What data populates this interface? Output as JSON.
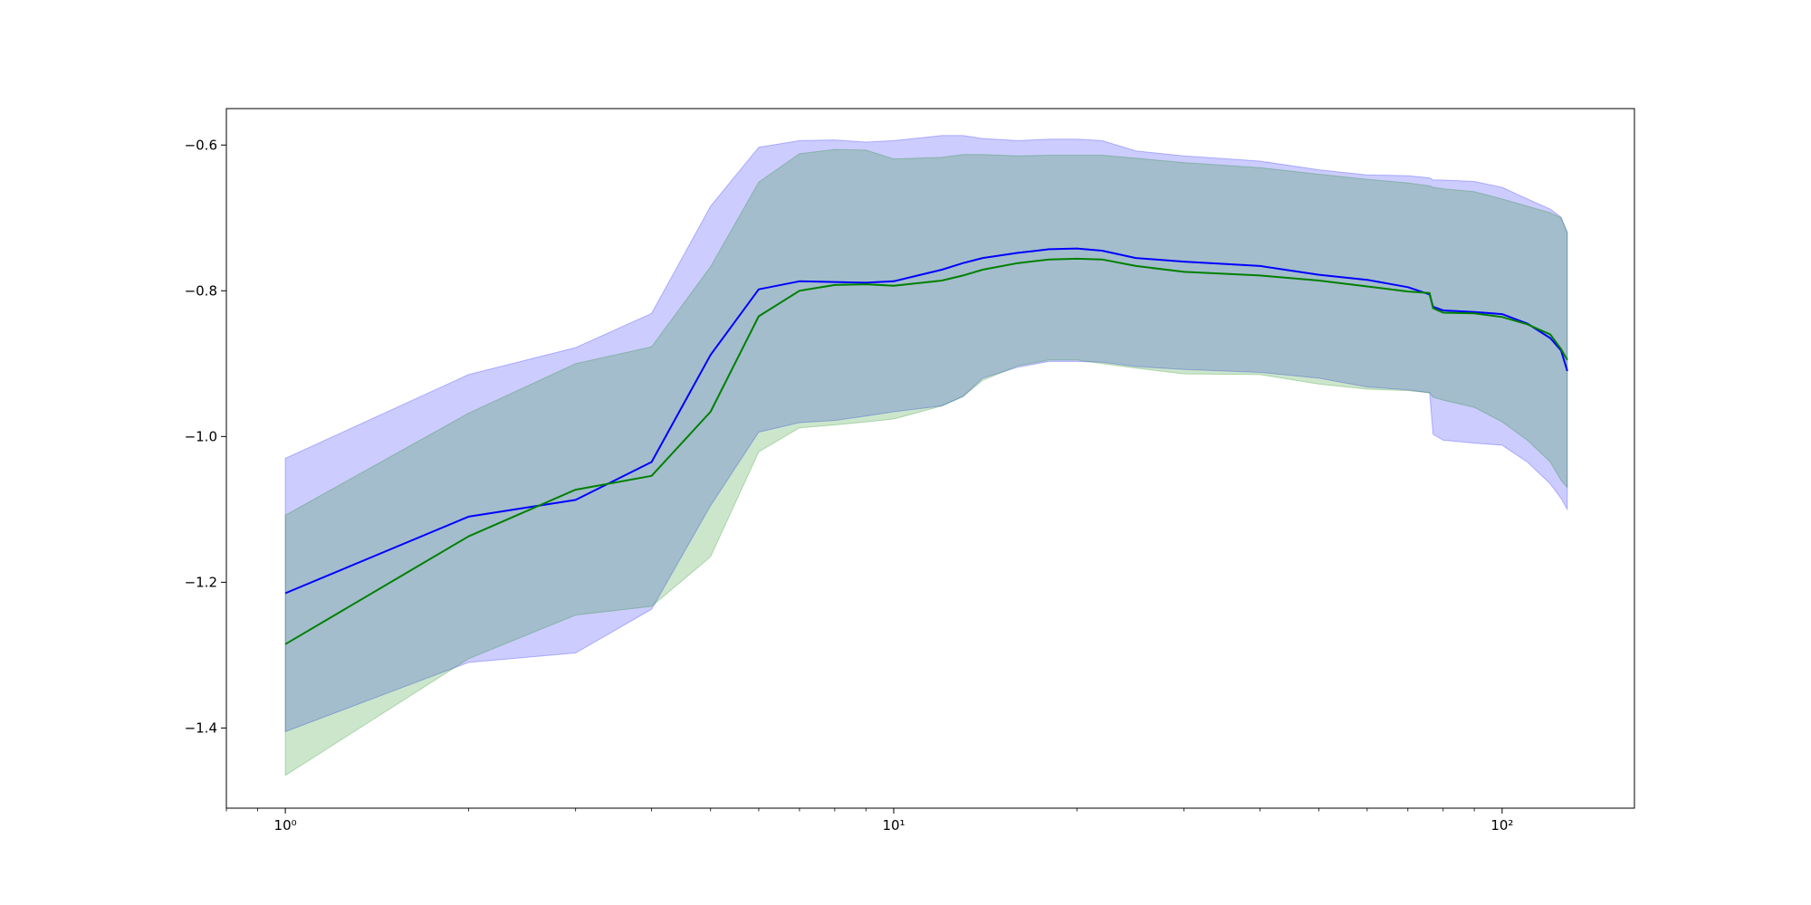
{
  "chart_data": {
    "type": "line",
    "xscale": "log",
    "xlim": [
      0.8,
      165
    ],
    "ylim": [
      -1.51,
      -0.55
    ],
    "grid": false,
    "title": "",
    "xlabel": "",
    "ylabel": "",
    "x_ticks": [
      {
        "value": 1,
        "label": "10⁰"
      },
      {
        "value": 10,
        "label": "10¹"
      },
      {
        "value": 100,
        "label": "10²"
      }
    ],
    "y_ticks": [
      {
        "value": -0.6,
        "label": "−0.6"
      },
      {
        "value": -0.8,
        "label": "−0.8"
      },
      {
        "value": -1.0,
        "label": "−1.0"
      },
      {
        "value": -1.2,
        "label": "−1.2"
      },
      {
        "value": -1.4,
        "label": "−1.4"
      }
    ],
    "series": [
      {
        "color": "#0000ff",
        "band_color": "#0000ff",
        "band_opacity": 0.2,
        "x": [
          1,
          2,
          3,
          4,
          5,
          6,
          7,
          8,
          9,
          10,
          12,
          13,
          14,
          16,
          18,
          20,
          22,
          25,
          30,
          40,
          50,
          60,
          70,
          76,
          77,
          80,
          90,
          100,
          110,
          120,
          125,
          128
        ],
        "mean": [
          -1.215,
          -1.11,
          -1.087,
          -1.035,
          -0.888,
          -0.798,
          -0.787,
          -0.788,
          -0.789,
          -0.787,
          -0.771,
          -0.762,
          -0.755,
          -0.748,
          -0.743,
          -0.742,
          -0.745,
          -0.755,
          -0.76,
          -0.766,
          -0.778,
          -0.785,
          -0.795,
          -0.805,
          -0.822,
          -0.827,
          -0.829,
          -0.832,
          -0.845,
          -0.865,
          -0.882,
          -0.91
        ],
        "upper": [
          -1.03,
          -0.915,
          -0.878,
          -0.831,
          -0.684,
          -0.603,
          -0.594,
          -0.593,
          -0.596,
          -0.594,
          -0.587,
          -0.587,
          -0.591,
          -0.594,
          -0.592,
          -0.592,
          -0.594,
          -0.608,
          -0.615,
          -0.622,
          -0.634,
          -0.641,
          -0.642,
          -0.645,
          -0.648,
          -0.648,
          -0.65,
          -0.658,
          -0.674,
          -0.688,
          -0.699,
          -0.72
        ],
        "lower": [
          -1.405,
          -1.31,
          -1.297,
          -1.237,
          -1.095,
          -0.994,
          -0.981,
          -0.978,
          -0.972,
          -0.966,
          -0.958,
          -0.945,
          -0.92,
          -0.905,
          -0.897,
          -0.897,
          -0.898,
          -0.904,
          -0.908,
          -0.912,
          -0.92,
          -0.932,
          -0.936,
          -0.94,
          -0.997,
          -1.005,
          -1.009,
          -1.012,
          -1.035,
          -1.065,
          -1.085,
          -1.1
        ]
      },
      {
        "color": "#008000",
        "band_color": "#008000",
        "band_opacity": 0.2,
        "x": [
          1,
          2,
          3,
          4,
          5,
          6,
          7,
          8,
          9,
          10,
          12,
          13,
          14,
          16,
          18,
          20,
          22,
          25,
          30,
          40,
          50,
          60,
          70,
          76,
          77,
          80,
          90,
          100,
          110,
          120,
          125,
          128
        ],
        "mean": [
          -1.285,
          -1.137,
          -1.073,
          -1.054,
          -0.966,
          -0.835,
          -0.8,
          -0.792,
          -0.791,
          -0.793,
          -0.786,
          -0.779,
          -0.771,
          -0.762,
          -0.757,
          -0.756,
          -0.757,
          -0.766,
          -0.774,
          -0.779,
          -0.786,
          -0.794,
          -0.801,
          -0.803,
          -0.824,
          -0.83,
          -0.831,
          -0.836,
          -0.846,
          -0.86,
          -0.88,
          -0.895
        ],
        "upper": [
          -1.108,
          -0.968,
          -0.9,
          -0.877,
          -0.767,
          -0.651,
          -0.612,
          -0.606,
          -0.607,
          -0.619,
          -0.617,
          -0.613,
          -0.613,
          -0.615,
          -0.614,
          -0.614,
          -0.614,
          -0.618,
          -0.624,
          -0.631,
          -0.64,
          -0.647,
          -0.652,
          -0.656,
          -0.658,
          -0.66,
          -0.664,
          -0.674,
          -0.684,
          -0.693,
          -0.7,
          -0.72
        ],
        "lower": [
          -1.465,
          -1.305,
          -1.245,
          -1.233,
          -1.165,
          -1.021,
          -0.988,
          -0.984,
          -0.98,
          -0.976,
          -0.958,
          -0.945,
          -0.923,
          -0.903,
          -0.895,
          -0.895,
          -0.9,
          -0.906,
          -0.914,
          -0.915,
          -0.928,
          -0.935,
          -0.937,
          -0.94,
          -0.946,
          -0.95,
          -0.96,
          -0.98,
          -1.005,
          -1.035,
          -1.06,
          -1.07
        ]
      }
    ]
  }
}
